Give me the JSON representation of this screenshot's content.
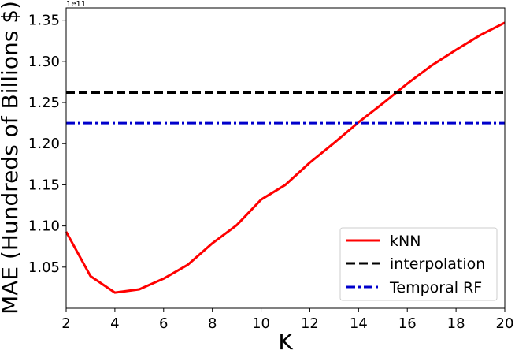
{
  "chart_data": {
    "type": "line",
    "title": "",
    "xlabel": "K",
    "ylabel": "MAE (Hundreds of Billions $)",
    "y_offset_text": "1e11",
    "xlim": [
      2,
      20
    ],
    "ylim": [
      1.0,
      1.365
    ],
    "y_unit_note": "y values shown in units of 1e11",
    "x_ticks": [
      2,
      4,
      6,
      8,
      10,
      12,
      14,
      16,
      18,
      20
    ],
    "y_ticks": [
      1.05,
      1.1,
      1.15,
      1.2,
      1.25,
      1.3,
      1.35
    ],
    "y_tick_labels": [
      "1.05",
      "1.10",
      "1.15",
      "1.20",
      "1.25",
      "1.30",
      "1.35"
    ],
    "grid": false,
    "legend_position": "lower-right",
    "series": [
      {
        "name": "kNN",
        "color": "#ff0000",
        "style": "solid",
        "x": [
          2,
          3,
          4,
          5,
          6,
          7,
          8,
          9,
          10,
          11,
          12,
          13,
          14,
          15,
          16,
          17,
          18,
          19,
          20
        ],
        "values": [
          1.093,
          1.039,
          1.019,
          1.023,
          1.036,
          1.053,
          1.079,
          1.101,
          1.132,
          1.15,
          1.177,
          1.201,
          1.226,
          1.249,
          1.273,
          1.295,
          1.314,
          1.332,
          1.347
        ]
      },
      {
        "name": "interpolation",
        "color": "#000000",
        "style": "dashed",
        "x": [
          2,
          20
        ],
        "values": [
          1.262,
          1.262
        ]
      },
      {
        "name": "Temporal RF",
        "color": "#0000cc",
        "style": "dashdot",
        "x": [
          2,
          20
        ],
        "values": [
          1.225,
          1.225
        ]
      }
    ]
  }
}
